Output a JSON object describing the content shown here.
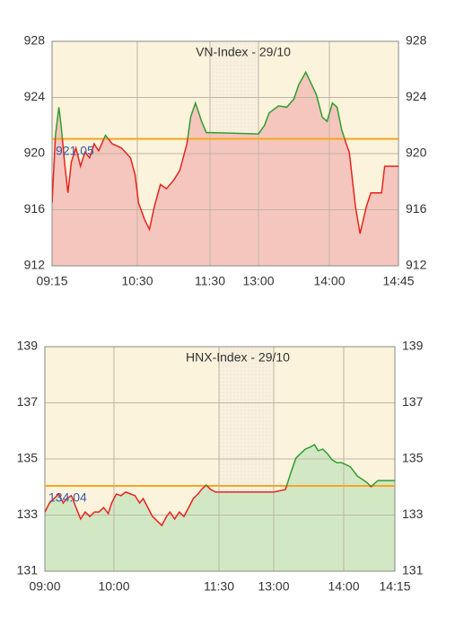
{
  "chart_data": [
    {
      "type": "line",
      "title": "VN-Index - 29/10",
      "x": [
        "09:15",
        "09:18",
        "09:21",
        "09:23",
        "09:26",
        "09:29",
        "09:32",
        "09:36",
        "09:40",
        "09:44",
        "09:48",
        "09:52",
        "09:56",
        "10:02",
        "10:08",
        "10:16",
        "10:24",
        "10:28",
        "10:31",
        "10:36",
        "10:40",
        "10:44",
        "10:49",
        "10:54",
        "11:00",
        "11:05",
        "11:11",
        "11:14",
        "11:18",
        "11:23",
        "11:27",
        "11:30",
        "13:00",
        "13:05",
        "13:09",
        "13:17",
        "13:24",
        "13:30",
        "13:34",
        "13:40",
        "13:44",
        "13:49",
        "13:54",
        "13:58",
        "14:02",
        "14:05",
        "14:08",
        "14:11",
        "14:13",
        "14:17",
        "14:20",
        "14:24",
        "14:27",
        "14:30",
        "14:34",
        "14:36",
        "14:45"
      ],
      "values": [
        916.5,
        921.3,
        923.3,
        922.0,
        919.4,
        917.2,
        919.4,
        920.4,
        919.1,
        920.1,
        919.7,
        920.7,
        920.2,
        921.3,
        920.7,
        920.4,
        919.7,
        918.5,
        916.5,
        915.3,
        914.6,
        916.2,
        917.8,
        917.5,
        918.1,
        918.8,
        920.7,
        922.6,
        923.6,
        922.3,
        921.5,
        921.5,
        921.4,
        922.0,
        922.9,
        923.4,
        923.3,
        923.9,
        924.9,
        925.8,
        925.1,
        924.2,
        922.6,
        922.3,
        923.6,
        923.3,
        921.7,
        920.7,
        920.1,
        916.2,
        914.3,
        916.2,
        917.2,
        917.2,
        917.2,
        919.1,
        919.1
      ],
      "reference": 921.05,
      "reference_color": "#f5a623",
      "up_color": "#2e9e2e",
      "down_color": "#e8231f",
      "fill_color": "#f5c6bd",
      "ylim": [
        912,
        928
      ],
      "yticks": [
        912,
        916,
        920,
        924,
        928
      ],
      "xticks": [
        "09:15",
        "10:30",
        "11:30",
        "13:00",
        "14:00",
        "14:45"
      ]
    },
    {
      "type": "line",
      "title": "HNX-Index - 29/10",
      "x": [
        "09:00",
        "09:04",
        "09:08",
        "09:12",
        "09:16",
        "09:19",
        "09:23",
        "09:27",
        "09:31",
        "09:35",
        "09:39",
        "09:43",
        "09:47",
        "09:51",
        "09:55",
        "09:58",
        "10:02",
        "10:06",
        "10:10",
        "10:18",
        "10:22",
        "10:25",
        "10:29",
        "10:33",
        "10:37",
        "10:41",
        "10:45",
        "10:48",
        "10:52",
        "10:56",
        "11:00",
        "11:04",
        "11:08",
        "11:12",
        "11:15",
        "11:19",
        "11:23",
        "11:27",
        "11:30",
        "13:00",
        "13:10",
        "13:15",
        "13:19",
        "13:23",
        "13:27",
        "13:31",
        "13:35",
        "13:38",
        "13:42",
        "13:46",
        "13:50",
        "13:54",
        "13:58",
        "14:01",
        "14:02",
        "14:03",
        "14:04",
        "14:06",
        "14:07",
        "14:08",
        "14:10",
        "14:12",
        "14:15"
      ],
      "values": [
        133.11,
        133.43,
        133.59,
        133.75,
        133.43,
        133.59,
        133.69,
        133.27,
        132.86,
        133.11,
        132.95,
        133.11,
        133.11,
        133.27,
        133.05,
        133.43,
        133.75,
        133.69,
        133.82,
        133.69,
        133.43,
        133.59,
        133.27,
        132.95,
        132.79,
        132.63,
        132.95,
        133.11,
        132.86,
        133.11,
        132.95,
        133.27,
        133.59,
        133.75,
        133.91,
        134.07,
        133.91,
        133.82,
        133.82,
        133.82,
        133.91,
        134.55,
        135.03,
        135.19,
        135.35,
        135.42,
        135.51,
        135.29,
        135.35,
        135.19,
        134.97,
        134.87,
        134.87,
        134.78,
        134.71,
        134.55,
        134.39,
        134.23,
        134.14,
        134.01,
        134.23,
        134.23,
        134.23
      ],
      "reference": 134.04,
      "reference_color": "#f5a623",
      "up_color": "#2e9e2e",
      "down_color": "#e8231f",
      "fill_color": "#d2e8c4",
      "ylim": [
        131,
        139
      ],
      "yticks": [
        131,
        133,
        135,
        137,
        139
      ],
      "xticks": [
        "09:00",
        "10:00",
        "11:30",
        "13:00",
        "14:00",
        "14:15"
      ]
    }
  ]
}
